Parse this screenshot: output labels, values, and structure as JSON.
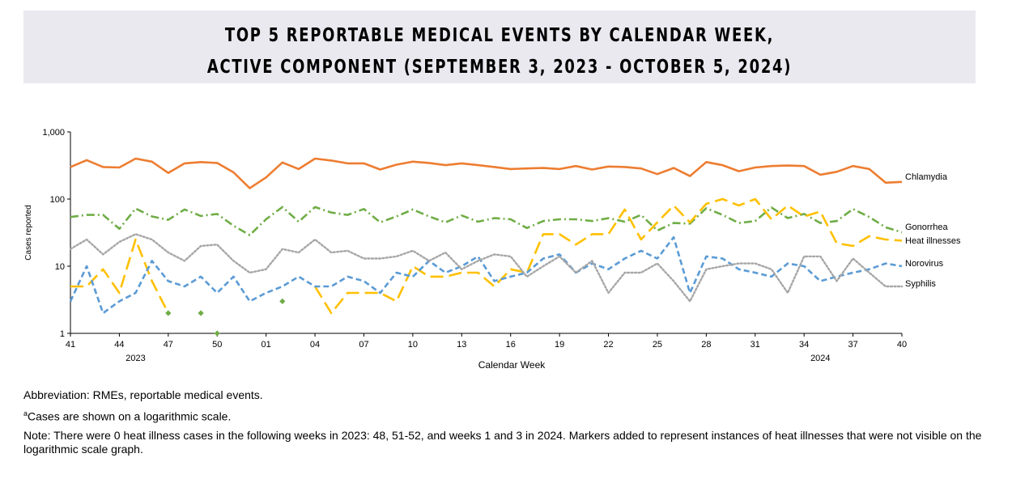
{
  "title": {
    "line1": "TOP 5 REPORTABLE MEDICAL EVENTS BY CALENDAR WEEK,",
    "line2": "ACTIVE COMPONENT (SEPTEMBER 3, 2023 - OCTOBER 5, 2024)"
  },
  "notes": {
    "abbreviation": "Abbreviation: RMEs, reportable medical events.",
    "superscript_a": "a",
    "footnote_a": "Cases are shown on a logarithmic scale.",
    "note": "Note: There were 0 heat illness cases in the following weeks in 2023: 48, 51-52, and weeks 1 and 3 in 2024. Markers added to represent instances of heat illnesses that were not visible on the logarithmic scale graph."
  },
  "chart_data": {
    "type": "line",
    "y_scale": "log",
    "ylim": [
      1,
      1000
    ],
    "y_ticks": [
      {
        "value": 1,
        "label": "1"
      },
      {
        "value": 10,
        "label": "10"
      },
      {
        "value": 100,
        "label": "100"
      },
      {
        "value": 1000,
        "label": "1,000"
      }
    ],
    "ylabel": "Cases reported",
    "xlabel": "Calendar Week",
    "x_tick_labels": [
      "41",
      "44",
      "47",
      "50",
      "01",
      "04",
      "07",
      "10",
      "13",
      "16",
      "19",
      "22",
      "25",
      "28",
      "31",
      "34",
      "37",
      "40"
    ],
    "x_tick_every": 3,
    "year_labels": [
      {
        "label": "2023",
        "week_index": 4
      },
      {
        "label": "2024",
        "week_index": 46
      }
    ],
    "grid": false,
    "legend": "inline-right",
    "weeks": [
      "41",
      "42",
      "43",
      "44",
      "45",
      "46",
      "47",
      "48",
      "49",
      "50",
      "51",
      "52",
      "01",
      "02",
      "03",
      "04",
      "05",
      "06",
      "07",
      "08",
      "09",
      "10",
      "11",
      "12",
      "13",
      "14",
      "15",
      "16",
      "17",
      "18",
      "19",
      "20",
      "21",
      "22",
      "23",
      "24",
      "25",
      "26",
      "27",
      "28",
      "29",
      "30",
      "31",
      "32",
      "33",
      "34",
      "35",
      "36",
      "37",
      "38",
      "39",
      "40"
    ],
    "series": [
      {
        "name": "Chlamydia",
        "color": "#ed7d31",
        "dash": "solid",
        "values": [
          300,
          380,
          300,
          295,
          400,
          360,
          245,
          340,
          355,
          345,
          250,
          145,
          210,
          350,
          280,
          400,
          375,
          340,
          340,
          275,
          325,
          360,
          345,
          320,
          340,
          320,
          300,
          280,
          285,
          290,
          280,
          310,
          275,
          305,
          300,
          285,
          235,
          290,
          220,
          355,
          320,
          260,
          295,
          310,
          315,
          310,
          230,
          255,
          310,
          280,
          175,
          180
        ]
      },
      {
        "name": "Gonorrhea",
        "color": "#70ad47",
        "dash": "dashdot",
        "values": [
          54,
          58,
          58,
          36,
          72,
          55,
          49,
          70,
          56,
          60,
          40,
          29,
          50,
          76,
          46,
          76,
          63,
          58,
          71,
          45,
          55,
          70,
          55,
          45,
          57,
          46,
          52,
          50,
          37,
          47,
          50,
          50,
          47,
          52,
          46,
          58,
          34,
          44,
          43,
          73,
          58,
          44,
          47,
          75,
          52,
          60,
          44,
          47,
          71,
          54,
          38,
          32
        ]
      },
      {
        "name": "Heat illnesses",
        "color": "#ffc000",
        "dash": "longdash",
        "values": [
          5,
          5,
          9,
          4,
          25,
          6,
          2,
          null,
          null,
          1,
          null,
          null,
          null,
          null,
          null,
          5,
          2,
          4,
          4,
          4,
          3,
          10,
          7,
          7,
          8,
          8,
          5,
          9,
          8,
          30,
          30,
          21,
          30,
          30,
          70,
          25,
          45,
          80,
          45,
          85,
          100,
          80,
          100,
          50,
          80,
          55,
          65,
          22,
          20,
          28,
          25,
          24
        ]
      },
      {
        "name": "Norovirus",
        "color": "#5b9bd5",
        "dash": "dashed",
        "values": [
          3,
          10,
          2,
          3,
          4,
          12,
          6,
          5,
          7,
          4,
          7,
          3,
          4,
          5,
          7,
          5,
          5,
          7,
          6,
          4,
          8,
          7,
          12,
          8,
          10,
          14,
          6,
          7,
          8,
          13,
          15,
          8,
          11,
          9,
          13,
          17,
          13,
          27,
          4,
          14,
          13,
          9,
          8,
          7,
          11,
          10,
          6,
          7,
          8,
          9,
          11,
          10
        ]
      },
      {
        "name": "Syphilis",
        "color": "#a6a6a6",
        "dash": "dotted",
        "values": [
          18,
          25,
          15,
          23,
          30,
          25,
          16,
          12,
          20,
          21,
          12,
          8,
          9,
          18,
          16,
          25,
          16,
          17,
          13,
          13,
          14,
          17,
          12,
          16,
          9,
          12,
          15,
          14,
          7,
          10,
          14,
          8,
          12,
          4,
          8,
          8,
          11,
          6,
          3,
          9,
          10,
          11,
          11,
          9,
          4,
          14,
          14,
          6,
          13,
          8,
          5,
          5
        ]
      }
    ],
    "markers": [
      {
        "series": "Heat illnesses",
        "color": "#70ad47",
        "points": [
          {
            "week_index": 6,
            "value": 2
          },
          {
            "week_index": 8,
            "value": 2
          },
          {
            "week_index": 9,
            "value": 1
          },
          {
            "week_index": 13,
            "value": 3
          }
        ]
      }
    ]
  }
}
